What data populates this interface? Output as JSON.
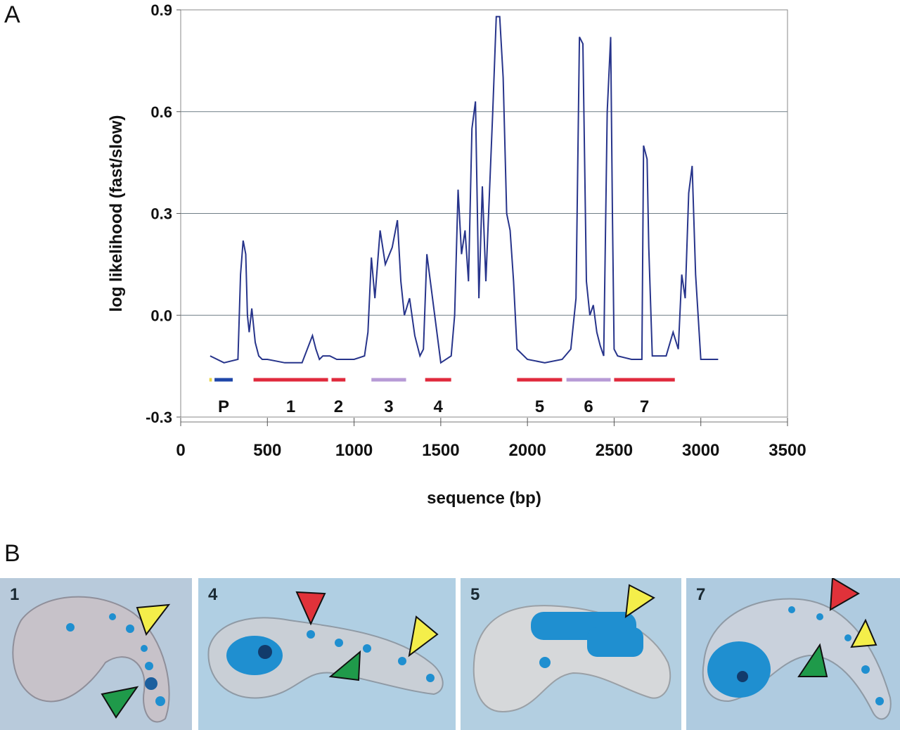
{
  "panels": {
    "a": "A",
    "b": "B"
  },
  "chart_data": {
    "type": "line",
    "title": "",
    "xlabel": "sequence (bp)",
    "ylabel": "log likelihood (fast/slow)",
    "xlim": [
      0,
      3500
    ],
    "ylim": [
      -0.3,
      0.9
    ],
    "xticks": [
      "0",
      "500",
      "1000",
      "1500",
      "2000",
      "2500",
      "3000",
      "3500"
    ],
    "yticks": [
      "-0.3",
      "0.0",
      "0.3",
      "0.6",
      "0.9"
    ],
    "grid": "horizontal",
    "line_color": "#27348b",
    "series": [
      {
        "x": [
          170,
          250,
          330,
          345,
          360,
          375,
          385,
          395,
          410,
          430,
          450,
          470,
          500,
          600,
          700,
          760,
          780,
          800,
          820,
          860,
          900,
          1000,
          1060,
          1080,
          1100,
          1120,
          1150,
          1180,
          1220,
          1250,
          1270,
          1290,
          1320,
          1350,
          1380,
          1400,
          1420,
          1500,
          1560,
          1580,
          1600,
          1620,
          1640,
          1660,
          1680,
          1700,
          1720,
          1740,
          1760,
          1780,
          1800,
          1820,
          1840,
          1860,
          1880,
          1900,
          1920,
          1940,
          2000,
          2100,
          2200,
          2250,
          2280,
          2300,
          2320,
          2340,
          2360,
          2380,
          2400,
          2420,
          2440,
          2460,
          2480,
          2490,
          2500,
          2520,
          2600,
          2660,
          2670,
          2690,
          2700,
          2720,
          2800,
          2840,
          2870,
          2890,
          2910,
          2930,
          2950,
          2970,
          3000,
          3100
        ],
        "y": [
          -0.12,
          -0.14,
          -0.13,
          0.12,
          0.22,
          0.18,
          0.0,
          -0.05,
          0.02,
          -0.08,
          -0.12,
          -0.13,
          -0.13,
          -0.14,
          -0.14,
          -0.06,
          -0.1,
          -0.13,
          -0.12,
          -0.12,
          -0.13,
          -0.13,
          -0.12,
          -0.05,
          0.17,
          0.05,
          0.25,
          0.15,
          0.2,
          0.28,
          0.1,
          0.0,
          0.05,
          -0.06,
          -0.12,
          -0.1,
          0.18,
          -0.14,
          -0.12,
          0.0,
          0.37,
          0.18,
          0.25,
          0.1,
          0.55,
          0.63,
          0.05,
          0.38,
          0.1,
          0.35,
          0.6,
          0.88,
          0.88,
          0.7,
          0.3,
          0.25,
          0.1,
          -0.1,
          -0.13,
          -0.14,
          -0.13,
          -0.1,
          0.05,
          0.82,
          0.8,
          0.1,
          0.0,
          0.03,
          -0.05,
          -0.09,
          -0.12,
          0.6,
          0.82,
          0.3,
          -0.1,
          -0.12,
          -0.13,
          -0.13,
          0.5,
          0.46,
          0.2,
          -0.12,
          -0.12,
          -0.05,
          -0.1,
          0.12,
          0.05,
          0.36,
          0.44,
          0.12,
          -0.13,
          -0.13
        ]
      }
    ],
    "segments": [
      {
        "label": "",
        "start": 165,
        "end": 180,
        "color": "#e8d64a"
      },
      {
        "label": "P",
        "start": 195,
        "end": 300,
        "color": "#1e46a8"
      },
      {
        "label": "1",
        "start": 420,
        "end": 850,
        "color": "#e02a3c"
      },
      {
        "label": "2",
        "start": 870,
        "end": 950,
        "color": "#e02a3c"
      },
      {
        "label": "3",
        "start": 1100,
        "end": 1300,
        "color": "#b79ad6"
      },
      {
        "label": "4",
        "start": 1410,
        "end": 1560,
        "color": "#e02a3c"
      },
      {
        "label": "5",
        "start": 1940,
        "end": 2200,
        "color": "#e02a3c"
      },
      {
        "label": "6",
        "start": 2225,
        "end": 2480,
        "color": "#b79ad6"
      },
      {
        "label": "7",
        "start": 2500,
        "end": 2850,
        "color": "#e02a3c"
      }
    ]
  },
  "photos": [
    {
      "label": "1",
      "bg": "#b8cadb"
    },
    {
      "label": "4",
      "bg": "#b0cfe3"
    },
    {
      "label": "5",
      "bg": "#b3cfe1"
    },
    {
      "label": "7",
      "bg": "#afcbe0"
    }
  ],
  "colors": {
    "stain": "#1f8fd0",
    "arrow_red": "#e0323a",
    "arrow_yellow": "#f4ee4a",
    "arrow_green": "#1f9a4a"
  }
}
